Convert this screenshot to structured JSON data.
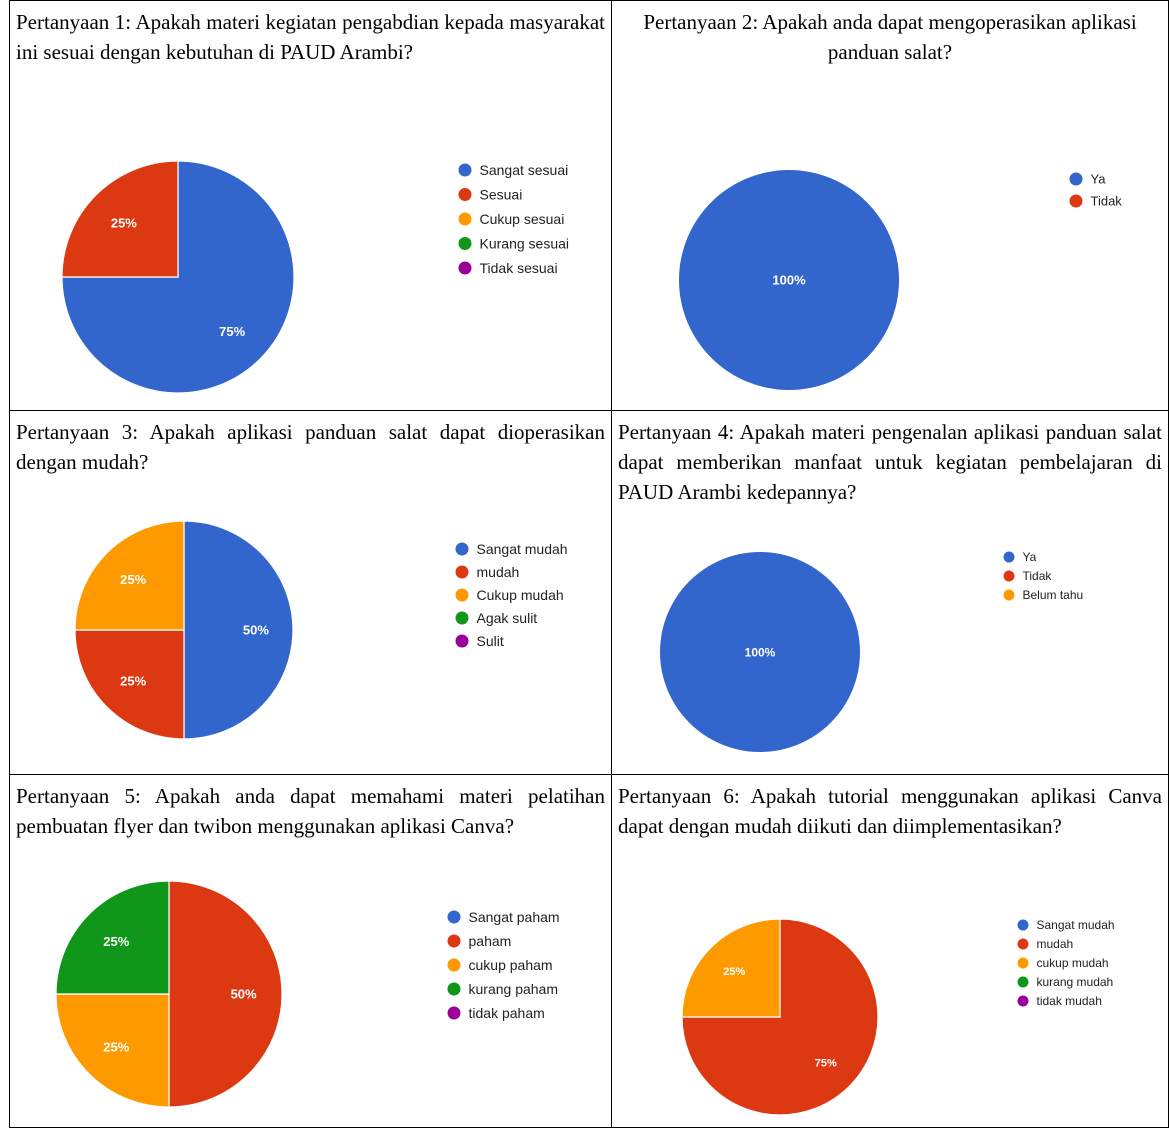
{
  "colors": {
    "blue": "#3366cc",
    "red": "#dc3912",
    "orange": "#ff9900",
    "green": "#109618",
    "purple": "#990099",
    "label": "#ffffff",
    "legend_text": "#222222"
  },
  "chart_data": [
    {
      "type": "pie",
      "title": "Pertanyaan 1: Apakah materi kegiatan pengabdian kepada masyarakat ini sesuai dengan kebutuhan di PAUD Arambi?",
      "categories": [
        "Sangat sesuai",
        "Sesuai",
        "Cukup sesuai",
        "Kurang sesuai",
        "Tidak sesuai"
      ],
      "values": [
        75,
        25,
        0,
        0,
        0
      ],
      "data_labels": [
        "75%",
        "25%",
        "",
        "",
        ""
      ],
      "legend_position": "right"
    },
    {
      "type": "pie",
      "title": "Pertanyaan 2: Apakah anda dapat mengoperasikan aplikasi panduan salat?",
      "categories": [
        "Ya",
        "Tidak"
      ],
      "values": [
        100,
        0
      ],
      "data_labels": [
        "100%",
        ""
      ],
      "legend_position": "right"
    },
    {
      "type": "pie",
      "title": "Pertanyaan 3: Apakah aplikasi panduan salat dapat dioperasikan dengan mudah?",
      "categories": [
        "Sangat mudah",
        "mudah",
        "Cukup mudah",
        "Agak sulit",
        "Sulit"
      ],
      "values": [
        50,
        25,
        25,
        0,
        0
      ],
      "data_labels": [
        "50%",
        "25%",
        "25%",
        "",
        ""
      ],
      "legend_position": "right"
    },
    {
      "type": "pie",
      "title": "Pertanyaan 4: Apakah materi pengenalan aplikasi panduan salat dapat memberikan manfaat untuk kegiatan pembelajaran di PAUD Arambi kedepannya?",
      "categories": [
        "Ya",
        "Tidak",
        "Belum tahu"
      ],
      "values": [
        100,
        0,
        0
      ],
      "data_labels": [
        "100%",
        "",
        ""
      ],
      "legend_position": "right"
    },
    {
      "type": "pie",
      "title": "Pertanyaan 5: Apakah anda dapat memahami materi pelatihan pembuatan flyer dan twibon menggunakan aplikasi Canva?",
      "categories": [
        "Sangat paham",
        "paham",
        "cukup paham",
        "kurang paham",
        "tidak paham"
      ],
      "values": [
        0,
        50,
        25,
        25,
        0
      ],
      "data_labels": [
        "",
        "50%",
        "25%",
        "25%",
        ""
      ],
      "legend_position": "right"
    },
    {
      "type": "pie",
      "title": "Pertanyaan 6: Apakah tutorial menggunakan aplikasi Canva dapat dengan mudah diikuti dan diimplementasikan?",
      "categories": [
        "Sangat mudah",
        "mudah",
        "cukup mudah",
        "kurang mudah",
        "tidak mudah"
      ],
      "values": [
        0,
        75,
        25,
        0,
        0
      ],
      "data_labels": [
        "",
        "75%",
        "25%",
        "",
        ""
      ],
      "legend_position": "right"
    }
  ]
}
